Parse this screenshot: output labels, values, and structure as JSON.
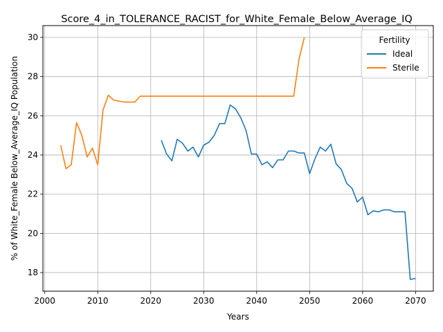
{
  "chart_data": {
    "type": "line",
    "title": "Score_4_in_TOLERANCE_RACIST_for_White_Female_Below_Average_IQ",
    "xlabel": "Years",
    "ylabel": "% of White_Female Below_Average_IQ Population",
    "xlim": [
      1999.65,
      2073.35
    ],
    "ylim": [
      17.05,
      30.6
    ],
    "xticks": [
      2000,
      2010,
      2020,
      2030,
      2040,
      2050,
      2060,
      2070
    ],
    "yticks": [
      18,
      20,
      22,
      24,
      26,
      28,
      30
    ],
    "grid": true,
    "legend": {
      "title": "Fertility",
      "position": "upper right"
    },
    "series": [
      {
        "name": "Ideal",
        "color": "#1f77b4",
        "x": [
          2022,
          2023,
          2024,
          2025,
          2026,
          2027,
          2028,
          2029,
          2030,
          2031,
          2032,
          2033,
          2034,
          2035,
          2036,
          2037,
          2038,
          2039,
          2040,
          2041,
          2042,
          2043,
          2044,
          2045,
          2046,
          2047,
          2048,
          2049,
          2050,
          2051,
          2052,
          2053,
          2054,
          2055,
          2056,
          2057,
          2058,
          2059,
          2060,
          2061,
          2062,
          2063,
          2064,
          2065,
          2066,
          2067,
          2068,
          2069,
          2070
        ],
        "y": [
          24.75,
          24.05,
          23.7,
          24.8,
          24.6,
          24.2,
          24.4,
          23.9,
          24.5,
          24.65,
          25.0,
          25.6,
          25.6,
          26.55,
          26.35,
          25.9,
          25.25,
          24.05,
          24.05,
          23.5,
          23.65,
          23.35,
          23.75,
          23.75,
          24.2,
          24.2,
          24.1,
          24.1,
          23.05,
          23.8,
          24.4,
          24.2,
          24.55,
          23.55,
          23.25,
          22.55,
          22.3,
          21.6,
          21.85,
          20.95,
          21.15,
          21.1,
          21.2,
          21.2,
          21.1,
          21.1,
          21.1,
          17.65,
          17.7
        ]
      },
      {
        "name": "Sterile",
        "color": "#ff7f0e",
        "x": [
          2003,
          2004,
          2005,
          2006,
          2007,
          2008,
          2009,
          2010,
          2011,
          2012,
          2013,
          2014,
          2015,
          2016,
          2017,
          2018,
          2019,
          2020,
          2021,
          2022,
          2023,
          2024,
          2025,
          2026,
          2027,
          2028,
          2029,
          2030,
          2031,
          2032,
          2033,
          2034,
          2035,
          2036,
          2037,
          2038,
          2039,
          2040,
          2041,
          2042,
          2043,
          2044,
          2045,
          2046,
          2047,
          2048,
          2049
        ],
        "y": [
          24.5,
          23.3,
          23.5,
          25.65,
          25.0,
          23.9,
          24.35,
          23.5,
          26.3,
          27.05,
          26.8,
          26.75,
          26.7,
          26.7,
          26.7,
          27.0,
          27.0,
          27.0,
          27.0,
          27.0,
          27.0,
          27.0,
          27.0,
          27.0,
          27.0,
          27.0,
          27.0,
          27.0,
          27.0,
          27.0,
          27.0,
          27.0,
          27.0,
          27.0,
          27.0,
          27.0,
          27.0,
          27.0,
          27.0,
          27.0,
          27.0,
          27.0,
          27.0,
          27.0,
          27.0,
          28.9,
          30.0
        ]
      }
    ]
  }
}
